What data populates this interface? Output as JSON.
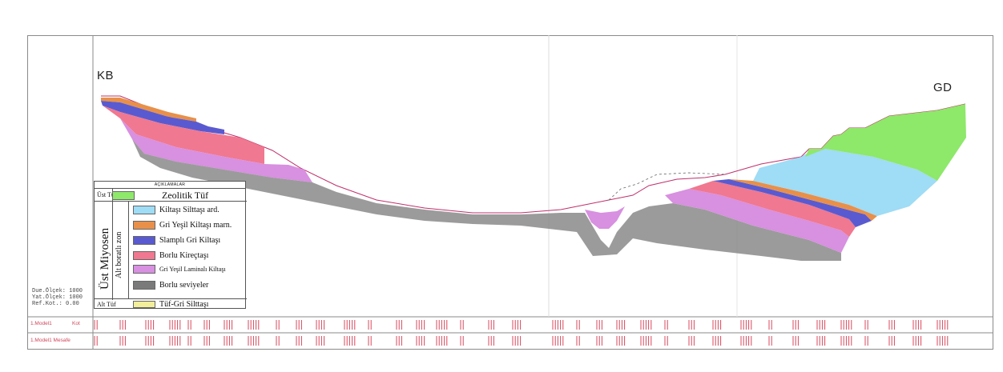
{
  "labels": {
    "left_end": "KB",
    "right_end": "GD"
  },
  "legend": {
    "title": "AÇIKLAMALAR",
    "period": "Üst Miyosen",
    "zone": "Alt boratlı zon",
    "top_unit_tag": "Üst Tüf",
    "bottom_unit_tag": "Alt Tüf",
    "items": [
      {
        "label": "Zeolitik Tüf",
        "color": "#8ee86a"
      },
      {
        "label": "Kiltaşı Silttaşı ard.",
        "color": "#9fdcf5"
      },
      {
        "label": "Gri Yeşil Kiltaşı marn.",
        "color": "#e8904a"
      },
      {
        "label": "Slamplı Gri Kiltaşı",
        "color": "#5a5ad0"
      },
      {
        "label": "Borlu Kireçtaşı",
        "color": "#f07890"
      },
      {
        "label": "Gri Yeşil Laminalı Kiltaşı",
        "color": "#d890e0"
      },
      {
        "label": "Borlu seviyeler",
        "color": "#7a7a7a"
      },
      {
        "label": "Tüf-Gri Silttaşı",
        "color": "#f2ee9a"
      }
    ]
  },
  "scale_info": {
    "line1": "Due.Ölçek: 1000",
    "line2": "Yat.Ölçek: 1000",
    "line3": "Ref.Kot.: 0.00"
  },
  "bottom_rows": {
    "row1_a": "1.Model1",
    "row1_b": "Kot",
    "row2": "1.Model1 Mesafe"
  },
  "colors": {
    "frame": "#8a8a8a",
    "topo_line": "#c0306a",
    "tick_red": "#d8485c",
    "grey_layer": "#8a8a8a"
  }
}
